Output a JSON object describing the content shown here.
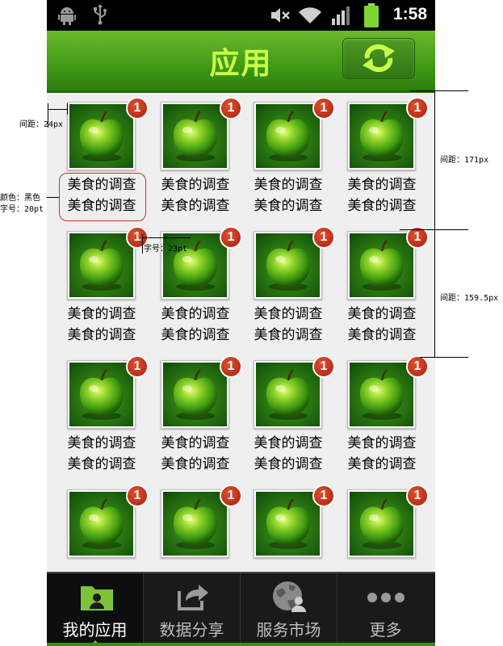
{
  "status_bar": {
    "time": "1:58",
    "icons": [
      "android-icon",
      "usb-icon",
      "mute-icon",
      "wifi-icon",
      "signal-icon",
      "battery-icon"
    ]
  },
  "header": {
    "title": "应用",
    "refresh_icon": "refresh-icon",
    "accent_color": "#c9ff4a"
  },
  "apps": [
    {
      "label1": "美食的调查",
      "label2": "美食的调查",
      "badge": "1"
    },
    {
      "label1": "美食的调查",
      "label2": "美食的调查",
      "badge": "1"
    },
    {
      "label1": "美食的调查",
      "label2": "美食的调查",
      "badge": "1"
    },
    {
      "label1": "美食的调查",
      "label2": "美食的调查",
      "badge": "1"
    },
    {
      "label1": "美食的调查",
      "label2": "美食的调查",
      "badge": "1"
    },
    {
      "label1": "美食的调查",
      "label2": "美食的调查",
      "badge": "1"
    },
    {
      "label1": "美食的调查",
      "label2": "美食的调查",
      "badge": "1"
    },
    {
      "label1": "美食的调查",
      "label2": "美食的调查",
      "badge": "1"
    },
    {
      "label1": "美食的调查",
      "label2": "美食的调查",
      "badge": "1"
    },
    {
      "label1": "美食的调查",
      "label2": "美食的调查",
      "badge": "1"
    },
    {
      "label1": "美食的调查",
      "label2": "美食的调查",
      "badge": "1"
    },
    {
      "label1": "美食的调查",
      "label2": "美食的调查",
      "badge": "1"
    },
    {
      "label1": "",
      "label2": "",
      "badge": "1"
    },
    {
      "label1": "",
      "label2": "",
      "badge": "1"
    },
    {
      "label1": "",
      "label2": "",
      "badge": "1"
    },
    {
      "label1": "",
      "label2": "",
      "badge": "1"
    }
  ],
  "tabs": [
    {
      "label": "我的应用",
      "icon": "folder-user-icon",
      "active": true
    },
    {
      "label": "数据分享",
      "icon": "share-icon",
      "active": false
    },
    {
      "label": "服务市场",
      "icon": "service-market-icon",
      "active": false
    },
    {
      "label": "更多",
      "icon": "more-icon",
      "active": false
    }
  ],
  "annotations": {
    "spacing_left": "间距：24px",
    "color_note": "颜色：黑色",
    "font_note": "字号：20pt",
    "badge_font_note": "字号：23pt",
    "spacing_row1": "间距：171px",
    "spacing_row2": "间距：159.5px"
  }
}
